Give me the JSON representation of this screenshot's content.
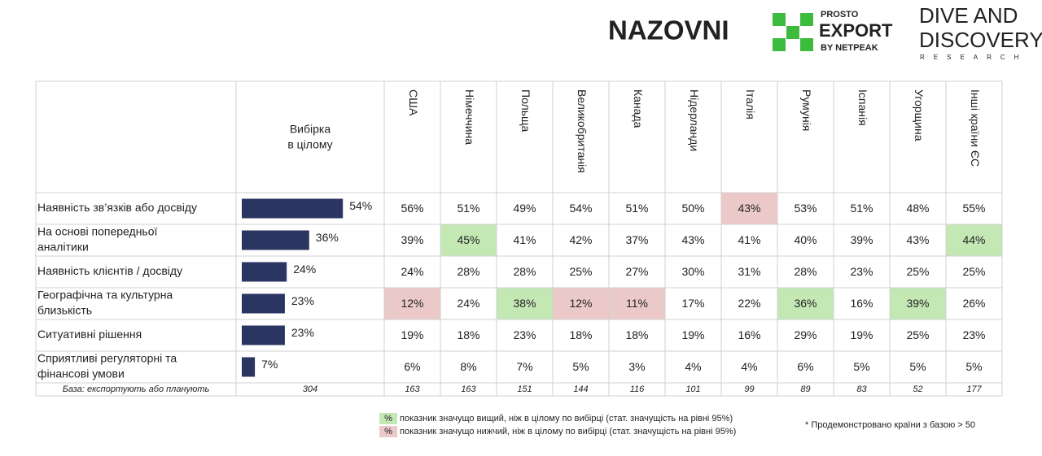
{
  "logos": {
    "nazovni": "NAZOVNI",
    "prosto_top": "PROSTO",
    "prosto_main": "EXPORT",
    "prosto_sub": "BY NETPEAK",
    "dive_1": "DIVE AND",
    "dive_2": "DISCOVERY",
    "dive_3": "RESEARCH"
  },
  "table": {
    "total_header": [
      "Вибірка",
      "в цілому"
    ],
    "columns": [
      "США",
      "Німеччина",
      "Польща",
      "Великобританія",
      "Канада",
      "Нідерланди",
      "Італія",
      "Румунія",
      "Іспанія",
      "Угорщина",
      "Інші країни ЄС"
    ],
    "bar_scale": [
      0,
      100
    ],
    "rows": [
      {
        "label": [
          "Наявність зв’язків або досвіду"
        ],
        "total": 54,
        "total_label": "54%",
        "cells": [
          "56%",
          "51%",
          "49%",
          "54%",
          "51%",
          "50%",
          "43%",
          "53%",
          "51%",
          "48%",
          "55%"
        ],
        "high": [],
        "low": [
          6
        ]
      },
      {
        "label": [
          "На основі попередньої",
          "аналітики"
        ],
        "total": 36,
        "total_label": "36%",
        "cells": [
          "39%",
          "45%",
          "41%",
          "42%",
          "37%",
          "43%",
          "41%",
          "40%",
          "39%",
          "43%",
          "44%"
        ],
        "high": [
          1,
          10
        ],
        "low": []
      },
      {
        "label": [
          "Наявність клієнтів / досвіду"
        ],
        "total": 24,
        "total_label": "24%",
        "cells": [
          "24%",
          "28%",
          "28%",
          "25%",
          "27%",
          "30%",
          "31%",
          "28%",
          "23%",
          "25%",
          "25%"
        ],
        "high": [],
        "low": []
      },
      {
        "label": [
          "Географічна та культурна",
          "близькість"
        ],
        "total": 23,
        "total_label": "23%",
        "cells": [
          "12%",
          "24%",
          "38%",
          "12%",
          "11%",
          "17%",
          "22%",
          "36%",
          "16%",
          "39%",
          "26%"
        ],
        "high": [
          2,
          7,
          9
        ],
        "low": [
          0,
          3,
          4
        ]
      },
      {
        "label": [
          "Ситуативні рішення"
        ],
        "total": 23,
        "total_label": "23%",
        "cells": [
          "19%",
          "18%",
          "23%",
          "18%",
          "18%",
          "19%",
          "16%",
          "29%",
          "19%",
          "25%",
          "23%"
        ],
        "high": [],
        "low": []
      },
      {
        "label": [
          "Сприятливі регуляторні та",
          "фінансові умови"
        ],
        "total": 7,
        "total_label": "7%",
        "cells": [
          "6%",
          "8%",
          "7%",
          "5%",
          "3%",
          "4%",
          "4%",
          "6%",
          "5%",
          "5%",
          "5%"
        ],
        "high": [],
        "low": []
      }
    ],
    "base": {
      "label": "База: експортують або планують",
      "total": "304",
      "cells": [
        "163",
        "163",
        "151",
        "144",
        "116",
        "101",
        "99",
        "89",
        "83",
        "52",
        "177"
      ]
    }
  },
  "colors": {
    "bar": "#2b3561",
    "high": "#c4e8b4",
    "low": "#ecc9c9"
  },
  "legend": [
    {
      "symbol": "%",
      "text": "показник значущо вищий, ніж в цілому по вибірці (стат. значущість на рівні 95%)",
      "level": "high"
    },
    {
      "symbol": "%",
      "text": "показник значущо нижчий, ніж в цілому по вибірці (стат. значущість на рівні 95%)",
      "level": "low"
    }
  ],
  "footnote": "* Продемонстровано країни з базою > 50"
}
